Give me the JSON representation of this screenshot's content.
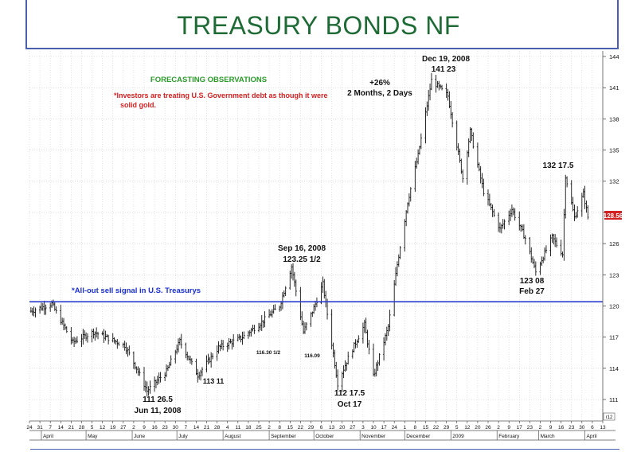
{
  "slide": {
    "title": "TREASURY BONDS NF"
  },
  "annotations": {
    "observations_heading": "FORECASTING OBSERVATIONS",
    "observation_line1": "*Investors are treating U.S. Government debt as though it were",
    "observation_line2": "solid gold.",
    "gain_line1": "+26%",
    "gain_line2": "2 Months, 2 Days",
    "dec_high_date": "Dec 19, 2008",
    "dec_high_price": "141 23",
    "sep_high_date": "Sep 16, 2008",
    "sep_high_price": "123.25 1/2",
    "jun_low_price": "111 26.5",
    "jun_low_date": "Jun 11, 2008",
    "jul_low_price": "113 11",
    "aug_label": "116.30 1/2",
    "sep_low_label": "116.09",
    "oct_low_price": "112 17.5",
    "oct_low_date": "Oct 17",
    "feb_low_price": "123 08",
    "feb_low_date": "Feb 27",
    "mar_high_price": "132 17.5",
    "sell_signal": "*All-out sell signal in U.S. Treasurys",
    "last_price_tag": "128.56",
    "axis_corner_tag": "r12"
  },
  "colors": {
    "title": "#1e6b36",
    "observations_heading": "#2a9a2a",
    "observations_text": "#d42020",
    "sell_signal_text": "#1a2fd0",
    "sell_signal_line": "#2a3fd0",
    "price_tag": "#d42020",
    "bars": "#111111"
  },
  "chart_data": {
    "type": "bar",
    "subtype": "ohlc",
    "x_start": "2008-03-24",
    "x_end": "2009-04-13",
    "ylim": [
      109,
      145
    ],
    "y_ticks": [
      111,
      114,
      117,
      120,
      123,
      126,
      129,
      132,
      135,
      138,
      141,
      144
    ],
    "y_tick_labels": [
      "111",
      "114",
      "117",
      "120",
      "123",
      "126",
      "129",
      "132",
      "135",
      "138",
      "141",
      "144"
    ],
    "day_ticks": [
      "24",
      "31",
      "7",
      "14",
      "21",
      "28",
      "5",
      "12",
      "19",
      "27",
      "2",
      "9",
      "16",
      "23",
      "30",
      "7",
      "14",
      "21",
      "28",
      "4",
      "11",
      "18",
      "25",
      "2",
      "8",
      "15",
      "22",
      "29",
      "6",
      "13",
      "20",
      "27",
      "3",
      "10",
      "17",
      "24",
      "1",
      "8",
      "15",
      "22",
      "29",
      "5",
      "12",
      "20",
      "26",
      "2",
      "9",
      "17",
      "23",
      "2",
      "9",
      "16",
      "23",
      "30",
      "6",
      "13"
    ],
    "month_labels": [
      "April",
      "May",
      "June",
      "July",
      "August",
      "September",
      "October",
      "November",
      "December",
      "2009",
      "February",
      "March",
      "April"
    ],
    "horizontal_line": {
      "value": 120.4,
      "label": "*All-out sell signal in U.S. Treasurys"
    },
    "last_price": 128.56,
    "key_points": [
      {
        "date": "2008-03-25",
        "value": 119.5
      },
      {
        "date": "2008-04-08",
        "value": 120.2
      },
      {
        "date": "2008-04-22",
        "value": 116.5
      },
      {
        "date": "2008-05-06",
        "value": 117.5
      },
      {
        "date": "2008-05-27",
        "value": 116.2
      },
      {
        "date": "2008-06-04",
        "value": 114.0
      },
      {
        "date": "2008-06-11",
        "value": 111.83
      },
      {
        "date": "2008-06-24",
        "value": 113.7
      },
      {
        "date": "2008-07-03",
        "value": 116.6
      },
      {
        "date": "2008-07-15",
        "value": 113.34
      },
      {
        "date": "2008-07-29",
        "value": 116.0
      },
      {
        "date": "2008-08-13",
        "value": 116.9
      },
      {
        "date": "2008-08-25",
        "value": 118.2
      },
      {
        "date": "2008-09-08",
        "value": 120.0
      },
      {
        "date": "2008-09-16",
        "value": 123.8
      },
      {
        "date": "2008-09-24",
        "value": 117.5
      },
      {
        "date": "2008-10-01",
        "value": 119.8
      },
      {
        "date": "2008-10-07",
        "value": 122.1
      },
      {
        "date": "2008-10-17",
        "value": 112.55
      },
      {
        "date": "2008-10-24",
        "value": 115.0
      },
      {
        "date": "2008-11-04",
        "value": 118.2
      },
      {
        "date": "2008-11-10",
        "value": 113.2
      },
      {
        "date": "2008-11-20",
        "value": 118.0
      },
      {
        "date": "2008-11-26",
        "value": 124.0
      },
      {
        "date": "2008-12-03",
        "value": 130.0
      },
      {
        "date": "2008-12-10",
        "value": 134.5
      },
      {
        "date": "2008-12-19",
        "value": 141.72
      },
      {
        "date": "2008-12-30",
        "value": 140.2
      },
      {
        "date": "2009-01-09",
        "value": 132.3
      },
      {
        "date": "2009-01-14",
        "value": 136.8
      },
      {
        "date": "2009-01-23",
        "value": 131.0
      },
      {
        "date": "2009-02-03",
        "value": 127.4
      },
      {
        "date": "2009-02-11",
        "value": 129.3
      },
      {
        "date": "2009-02-20",
        "value": 126.5
      },
      {
        "date": "2009-02-27",
        "value": 123.25
      },
      {
        "date": "2009-03-10",
        "value": 126.6
      },
      {
        "date": "2009-03-17",
        "value": 125.0
      },
      {
        "date": "2009-03-19",
        "value": 132.55
      },
      {
        "date": "2009-03-25",
        "value": 128.5
      },
      {
        "date": "2009-03-31",
        "value": 130.8
      },
      {
        "date": "2009-04-03",
        "value": 128.56
      }
    ]
  }
}
